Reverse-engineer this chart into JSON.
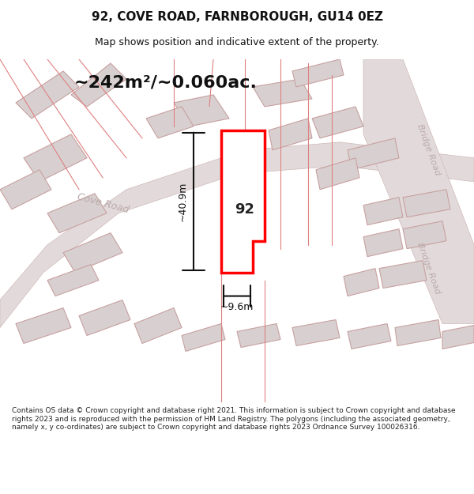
{
  "title": "92, COVE ROAD, FARNBOROUGH, GU14 0EZ",
  "subtitle": "Map shows position and indicative extent of the property.",
  "area_text": "~242m²/~0.060ac.",
  "dim_height": "~40.9m",
  "dim_width": "~9.6m",
  "property_number": "92",
  "footer": "Contains OS data © Crown copyright and database right 2021. This information is subject to Crown copyright and database rights 2023 and is reproduced with the permission of HM Land Registry. The polygons (including the associated geometry, namely x, y co-ordinates) are subject to Crown copyright and database rights 2023 Ordnance Survey 100026316.",
  "bg_color": "#f5f0f0",
  "map_bg": "#f7f2f2",
  "road_fill": "#e8e0e0",
  "building_fill": "#d8d0d0",
  "building_edge": "#c8a0a0",
  "highlight_edge": "#ff0000",
  "dim_color": "#111111",
  "road_label_color": "#aaaaaa",
  "title_color": "#111111",
  "footer_color": "#222222",
  "footer_bg": "#ffffff"
}
